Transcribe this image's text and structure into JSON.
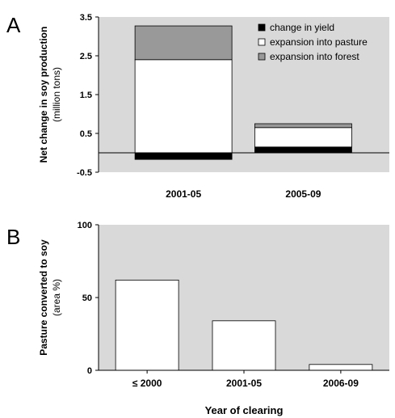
{
  "chart_data": [
    {
      "panel": "A",
      "type": "bar",
      "stacked": true,
      "categories": [
        "2001-05",
        "2005-09"
      ],
      "series": [
        {
          "name": "change in yield",
          "color": "#000000",
          "values": [
            -0.17,
            0.15
          ]
        },
        {
          "name": "expansion into pasture",
          "color": "#ffffff",
          "values": [
            2.4,
            0.5
          ]
        },
        {
          "name": "expansion into forest",
          "color": "#999999",
          "values": [
            0.87,
            0.1
          ]
        }
      ],
      "ylabel": "Net change in soy production",
      "ylabel_sub": "(million tons)",
      "xlabel": "",
      "ylim": [
        -0.5,
        3.5
      ],
      "yticks": [
        "-0.5",
        "0.5",
        "1.5",
        "2.5",
        "3.5"
      ],
      "zero_line": true,
      "background": "#d9d9d9",
      "legend": "top-right"
    },
    {
      "panel": "B",
      "type": "bar",
      "categories": [
        "≤ 2000",
        "2001-05",
        "2006-09"
      ],
      "values": [
        62,
        34,
        4
      ],
      "ylabel": "Pasture converted to soy",
      "ylabel_sub": "(area %)",
      "xlabel": "Year of clearing",
      "ylim": [
        0,
        100
      ],
      "yticks": [
        "0",
        "50",
        "100"
      ],
      "background": "#d9d9d9"
    }
  ]
}
